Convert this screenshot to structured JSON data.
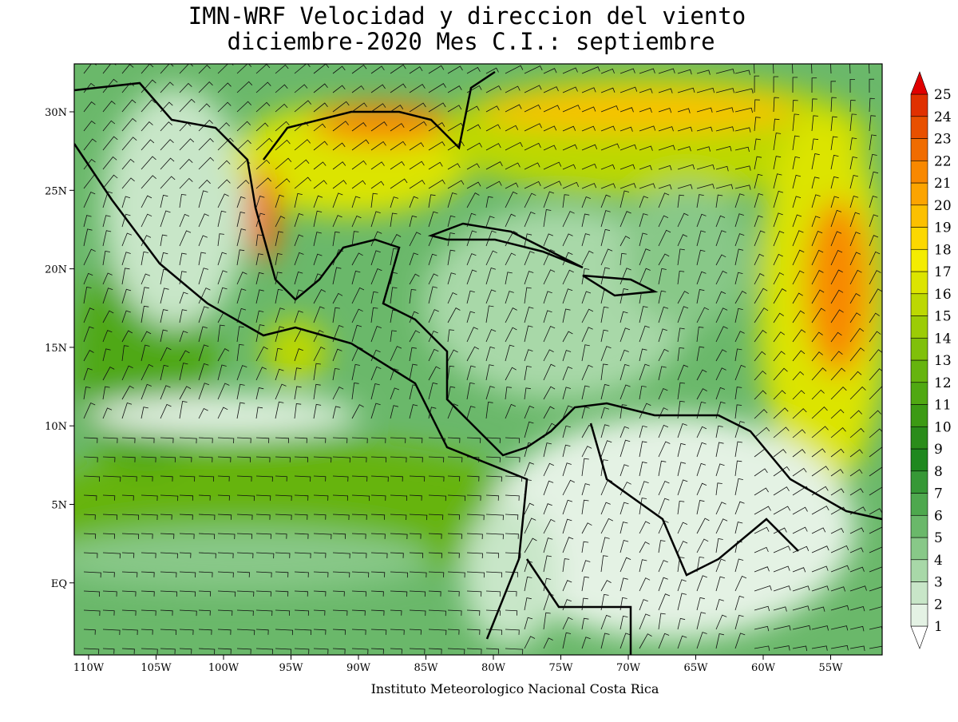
{
  "title": [
    "IMN-WRF Velocidad y direccion del viento",
    "diciembre-2020 Mes C.I.: septiembre"
  ],
  "x_labels": [
    "110W",
    "105W",
    "100W",
    "95W",
    "90W",
    "85W",
    "80W",
    "75W",
    "70W",
    "65W",
    "60W",
    "55W"
  ],
  "y_labels": [
    "30N",
    "25N",
    "20N",
    "15N",
    "10N",
    "5N",
    "EQ"
  ],
  "colorbar": {
    "levels": [
      1,
      2,
      3,
      4,
      5,
      6,
      7,
      8,
      9,
      10,
      11,
      12,
      13,
      14,
      15,
      16,
      17,
      18,
      19,
      20,
      21,
      22,
      23,
      24,
      25
    ],
    "colors": [
      "#ffffff",
      "#e4f2e4",
      "#c8e6c8",
      "#a8d8a8",
      "#88c888",
      "#6ab86a",
      "#4ea84e",
      "#369836",
      "#1e881e",
      "#2a8c1a",
      "#3c9a14",
      "#50a812",
      "#66b40e",
      "#80c00a",
      "#9ccc06",
      "#bcd802",
      "#dce400",
      "#f4ec00",
      "#fcd800",
      "#fcc000",
      "#fca400",
      "#f88800",
      "#f06c00",
      "#e85000",
      "#e03000",
      "#e00000"
    ]
  },
  "footer": "Instituto Meteorologico Nacional Costa Rica"
}
